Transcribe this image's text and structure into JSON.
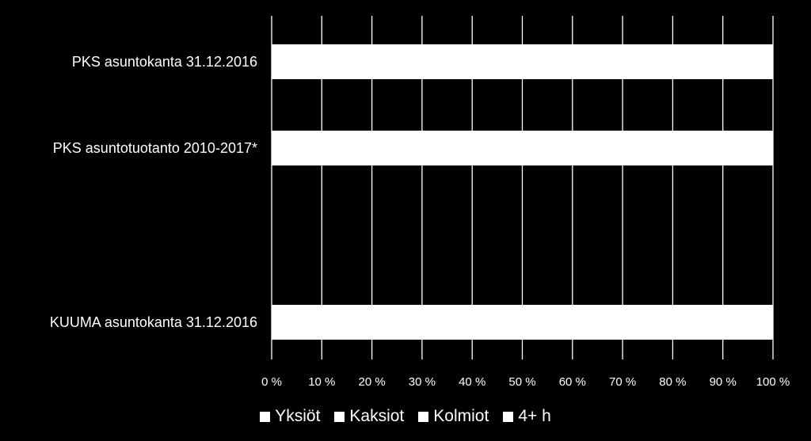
{
  "chart_data": {
    "type": "bar",
    "orientation": "horizontal",
    "stacked": true,
    "categories": [
      "PKS asuntokanta 31.12.2016",
      "PKS asuntotuotanto 2010-2017*",
      "KUUMA asuntokanta 31.12.2016"
    ],
    "x_ticks": [
      "0 %",
      "10 %",
      "20 %",
      "30 %",
      "40 %",
      "50 %",
      "60 %",
      "70 %",
      "80 %",
      "90 %",
      "100 %"
    ],
    "xlim": [
      0,
      100
    ],
    "series": [
      {
        "name": "Yksiöt",
        "color": "#ffffff",
        "values": [
          null,
          null,
          null
        ]
      },
      {
        "name": "Kaksiot",
        "color": "#ffffff",
        "values": [
          null,
          null,
          null
        ]
      },
      {
        "name": "Kolmiot",
        "color": "#ffffff",
        "values": [
          null,
          null,
          null
        ]
      },
      {
        "name": "4+ h",
        "color": "#ffffff",
        "values": [
          null,
          null,
          null
        ]
      }
    ],
    "bar_totals": [
      100,
      100,
      100
    ],
    "grid": true,
    "legend_position": "bottom",
    "background": "#000000"
  }
}
